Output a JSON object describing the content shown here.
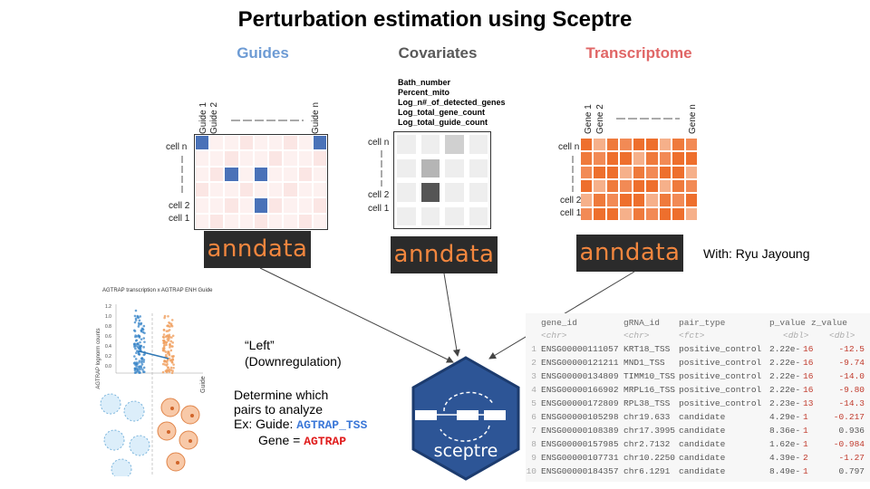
{
  "title": "Perturbation estimation using Sceptre",
  "columns": {
    "guides": {
      "label": "Guides",
      "color": "#6d9bd4"
    },
    "covariates": {
      "label": "Covariates",
      "color": "#595959"
    },
    "transcriptome": {
      "label": "Transcriptome",
      "color": "#e06666"
    }
  },
  "guides_panel": {
    "col_labels": [
      "Guide 1",
      "Guide 2",
      "Guide n"
    ],
    "row_labels": [
      "cell n",
      "cell 2",
      "cell 1"
    ]
  },
  "covariates_panel": {
    "items": [
      "Bath_number",
      "Percent_mito",
      "Log_n#_of_detected_genes",
      "Log_total_gene_count",
      "Log_total_guide_count"
    ],
    "row_labels": [
      "cell n",
      "cell 2",
      "cell 1"
    ]
  },
  "transcriptome_panel": {
    "col_labels": [
      "Gene 1",
      "Gene 2",
      "Gene n"
    ],
    "row_labels": [
      "cell n",
      "cell 2",
      "cell 1"
    ]
  },
  "anndata_label": "anndata",
  "with_text": "With: Ryu Jayoung",
  "left_plot": {
    "title": "AGTRAP transcription x AGTRAP ENH Guide",
    "ylabel": "AGTRAP lognorm counts",
    "xlabel": "Guide",
    "yticks": [
      "1.2",
      "1.0",
      "0.8",
      "0.6",
      "0.4",
      "0.2",
      "0.0"
    ]
  },
  "left_text": {
    "line1": "“Left”",
    "line2": "(Downregulation)"
  },
  "determine": {
    "line1": "Determine which",
    "line2": "pairs to analyze",
    "guide_prefix": "Ex: Guide: ",
    "guide_value": "AGTRAP_TSS",
    "gene_prefix": "Gene = ",
    "gene_value": "AGTRAP"
  },
  "sceptre_logo": "sceptre",
  "results_table": {
    "headers": [
      "gene_id",
      "gRNA_id",
      "pair_type",
      "p_value",
      "z_value"
    ],
    "types": [
      "<chr>",
      "<chr>",
      "<fct>",
      "<dbl>",
      "<dbl>"
    ],
    "rows": [
      [
        "1",
        "ENSG00000111057",
        "KRT18_TSS",
        "positive_control",
        "2.22e-",
        "16",
        "-12.5"
      ],
      [
        "2",
        "ENSG00000121211",
        "MND1_TSS",
        "positive_control",
        "2.22e-",
        "16",
        "-9.74"
      ],
      [
        "3",
        "ENSG00000134809",
        "TIMM10_TSS",
        "positive_control",
        "2.22e-",
        "16",
        "-14.0"
      ],
      [
        "4",
        "ENSG00000166902",
        "MRPL16_TSS",
        "positive_control",
        "2.22e-",
        "16",
        "-9.80"
      ],
      [
        "5",
        "ENSG00000172809",
        "RPL38_TSS",
        "positive_control",
        "2.23e-",
        "13",
        "-14.3"
      ],
      [
        "6",
        "ENSG00000105298",
        "chr19.633",
        "candidate",
        "4.29e-",
        " 1",
        "-0.217"
      ],
      [
        "7",
        "ENSG00000108389",
        "chr17.3995",
        "candidate",
        "8.36e-",
        " 1",
        "0.936"
      ],
      [
        "8",
        "ENSG00000157985",
        "chr2.7132",
        "candidate",
        "1.62e-",
        " 1",
        "-0.984"
      ],
      [
        "9",
        "ENSG00000107731",
        "chr10.2250",
        "candidate",
        "4.39e-",
        " 2",
        "-1.27"
      ],
      [
        "10",
        "ENSG00000184357",
        "chr6.1291",
        "candidate",
        "8.49e-",
        " 1",
        "0.797"
      ]
    ]
  }
}
